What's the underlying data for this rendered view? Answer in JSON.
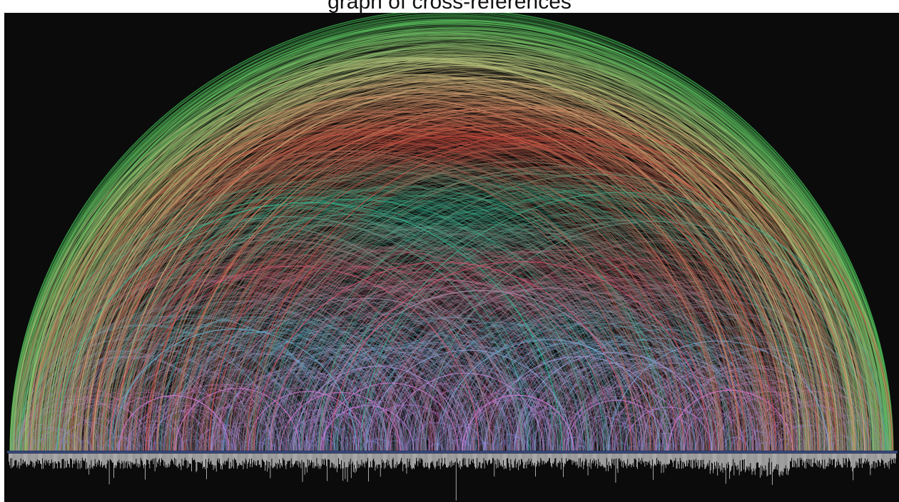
{
  "title": "graph of cross-references",
  "colors": {
    "background": "#0b0b0b",
    "page": "#ffffff",
    "baseline": "#3c4f8a",
    "bars": "#cfcfcf",
    "arc_gradient": [
      "#66c8ff",
      "#8fd6ff",
      "#7be0e0",
      "#34c99a",
      "#e8d088",
      "#e8a860",
      "#e86a6a",
      "#e86090",
      "#d070e0",
      "#f08ad8",
      "#60a0ff"
    ]
  },
  "diagram": {
    "type": "arc-diagram",
    "arc_layer_name": "cross-reference-arcs",
    "bar_layer_name": "chapter-length-bars"
  }
}
